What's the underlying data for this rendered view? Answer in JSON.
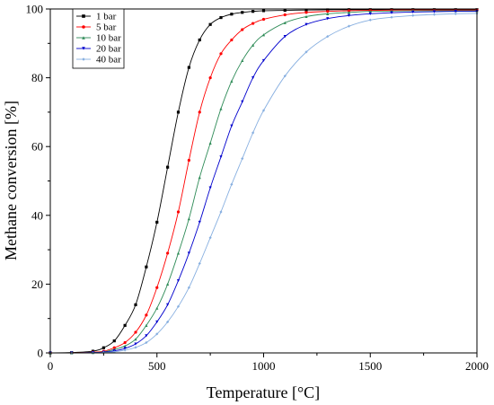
{
  "chart_data": {
    "type": "line",
    "xlabel": "Temperature [°C]",
    "ylabel": "Methane conversion [%]",
    "xlim": [
      0,
      2000
    ],
    "ylim": [
      0,
      100
    ],
    "xticks": [
      "0",
      "500",
      "1000",
      "1500",
      "2000"
    ],
    "yticks": [
      "0",
      "20",
      "40",
      "60",
      "80",
      "100"
    ],
    "grid": false,
    "legend_position": "top-left",
    "x": [
      0,
      100,
      200,
      250,
      300,
      350,
      400,
      450,
      500,
      550,
      600,
      650,
      700,
      750,
      800,
      850,
      900,
      950,
      1000,
      1100,
      1200,
      1300,
      1400,
      1500,
      1600,
      1700,
      1800,
      1900,
      2000
    ],
    "series": [
      {
        "name": "1 bar",
        "color": "#000000",
        "marker": "square",
        "values": [
          0,
          0.1,
          0.5,
          1.5,
          3.5,
          8,
          14,
          25,
          38,
          54,
          70,
          83,
          91,
          95.5,
          97.5,
          98.5,
          99,
          99.3,
          99.5,
          99.6,
          99.7,
          99.75,
          99.8,
          99.8,
          99.8,
          99.8,
          99.8,
          99.8,
          99.8
        ]
      },
      {
        "name": "5 bar",
        "color": "#ff0000",
        "marker": "circle",
        "values": [
          0,
          0,
          0.2,
          0.5,
          1.5,
          3,
          6,
          11,
          19,
          29,
          41,
          56,
          70,
          80,
          87,
          91,
          94,
          95.8,
          97,
          98.3,
          99,
          99.3,
          99.5,
          99.6,
          99.65,
          99.7,
          99.7,
          99.7,
          99.7
        ]
      },
      {
        "name": "10 bar",
        "color": "#2e8b57",
        "marker": "triangle-up",
        "values": [
          0,
          0,
          0.1,
          0.3,
          1,
          2,
          4,
          8,
          13,
          20,
          29,
          39,
          51,
          61,
          71,
          79,
          85,
          89.5,
          92.5,
          96,
          97.8,
          98.6,
          99,
          99.3,
          99.4,
          99.5,
          99.5,
          99.5,
          99.5
        ]
      },
      {
        "name": "20 bar",
        "color": "#0000cd",
        "marker": "triangle-down",
        "values": [
          0,
          0,
          0.1,
          0.2,
          0.6,
          1.3,
          2.6,
          5,
          9,
          14,
          21,
          29,
          38,
          48,
          57,
          66,
          73,
          80,
          85,
          92,
          95.5,
          97.2,
          98.1,
          98.6,
          98.9,
          99.1,
          99.2,
          99.3,
          99.3
        ]
      },
      {
        "name": "40 bar",
        "color": "#87afe0",
        "marker": "diamond",
        "values": [
          0,
          0,
          0.05,
          0.1,
          0.3,
          0.8,
          1.6,
          3,
          5.5,
          9,
          13.5,
          19,
          26,
          33.5,
          41,
          49,
          56.5,
          64,
          70.5,
          80.5,
          87.5,
          92,
          95,
          96.8,
          97.6,
          98.1,
          98.4,
          98.6,
          98.7
        ]
      }
    ]
  }
}
